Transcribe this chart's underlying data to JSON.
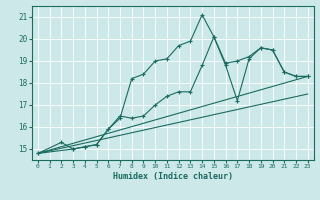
{
  "xlabel": "Humidex (Indice chaleur)",
  "ylabel": "",
  "bg_color": "#cce8e8",
  "line_color": "#1a6b60",
  "grid_color": "#ffffff",
  "xlim": [
    -0.5,
    23.5
  ],
  "ylim": [
    14.5,
    21.5
  ],
  "xticks": [
    0,
    1,
    2,
    3,
    4,
    5,
    6,
    7,
    8,
    9,
    10,
    11,
    12,
    13,
    14,
    15,
    16,
    17,
    18,
    19,
    20,
    21,
    22,
    23
  ],
  "yticks": [
    15,
    16,
    17,
    18,
    19,
    20,
    21
  ],
  "series": [
    {
      "x": [
        0,
        2,
        3,
        4,
        5,
        6,
        7,
        8,
        9,
        10,
        11,
        12,
        13,
        14,
        15,
        16,
        17,
        18,
        19,
        20,
        21,
        22,
        23
      ],
      "y": [
        14.8,
        15.3,
        15.0,
        15.1,
        15.2,
        15.9,
        16.4,
        18.2,
        18.4,
        19.0,
        19.1,
        19.7,
        19.9,
        21.1,
        20.1,
        18.8,
        17.2,
        19.1,
        19.6,
        19.5,
        18.5,
        18.3,
        18.3
      ],
      "marker": "+"
    },
    {
      "x": [
        0,
        3,
        4,
        5,
        6,
        7,
        8,
        9,
        10,
        11,
        12,
        13,
        14,
        15,
        16,
        17,
        18,
        19,
        20,
        21,
        22,
        23
      ],
      "y": [
        14.8,
        15.0,
        15.1,
        15.2,
        15.9,
        16.5,
        16.4,
        16.5,
        17.0,
        17.4,
        17.6,
        17.6,
        18.8,
        20.1,
        18.9,
        19.0,
        19.2,
        19.6,
        19.5,
        18.5,
        18.3,
        18.3
      ],
      "marker": "+"
    },
    {
      "x": [
        0,
        23
      ],
      "y": [
        14.8,
        18.3
      ],
      "marker": null
    },
    {
      "x": [
        0,
        23
      ],
      "y": [
        14.8,
        17.5
      ],
      "marker": null
    }
  ]
}
